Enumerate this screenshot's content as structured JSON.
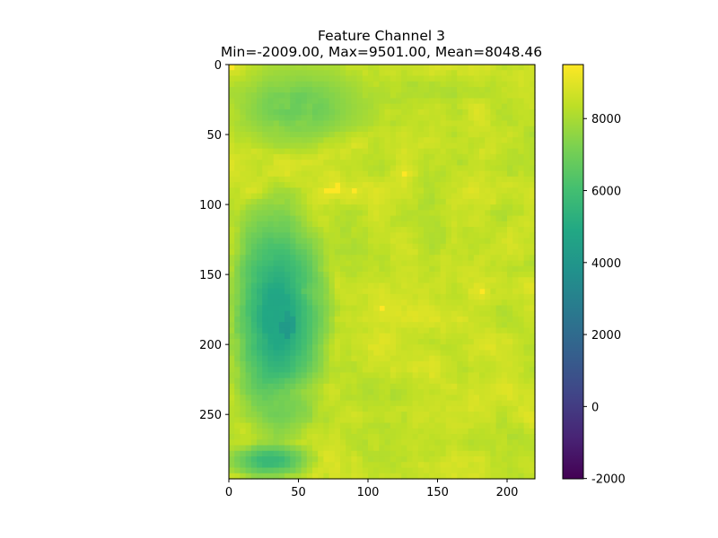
{
  "chart_data": {
    "type": "heatmap",
    "title": "Feature Channel 3",
    "subtitle": "Min=-2009.00, Max=9501.00, Mean=8048.46",
    "colormap": "viridis",
    "stats": {
      "min": -2009.0,
      "max": 9501.0,
      "mean": 8048.46
    },
    "image_width": 220,
    "image_height": 296,
    "xlim": [
      0,
      220
    ],
    "ylim": [
      296,
      0
    ],
    "x_ticks": [
      0,
      50,
      100,
      150,
      200
    ],
    "y_ticks": [
      0,
      50,
      100,
      150,
      200,
      250
    ],
    "colorbar": {
      "range": [
        -2009.0,
        9501.0
      ],
      "ticks": [
        -2000,
        0,
        2000,
        4000,
        6000,
        8000
      ]
    },
    "description_regions": [
      {
        "x": [
          0,
          100
        ],
        "y": [
          0,
          60
        ],
        "value": 6500
      },
      {
        "x": [
          0,
          70
        ],
        "y": [
          100,
          260
        ],
        "value": 4200
      },
      {
        "x": [
          20,
          60
        ],
        "y": [
          140,
          230
        ],
        "value": 3500
      },
      {
        "x": [
          100,
          220
        ],
        "y": [
          0,
          296
        ],
        "value": 8900
      },
      {
        "x": [
          0,
          60
        ],
        "y": [
          270,
          296
        ],
        "value": 5200
      }
    ]
  }
}
